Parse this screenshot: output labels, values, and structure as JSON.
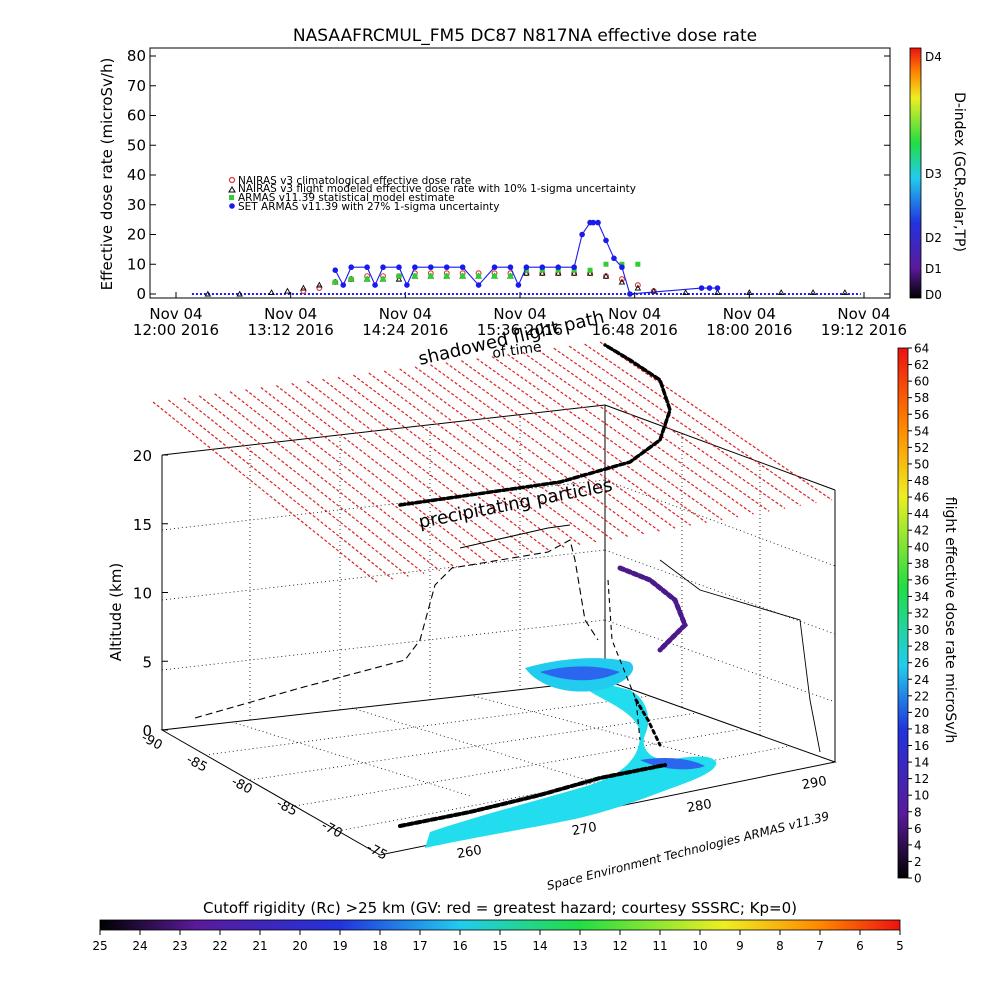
{
  "top_chart": {
    "title": "NASAAFRCMUL_FM5 DC87 N817NA effective dose rate",
    "ylabel": "Effective dose rate (microSv/h)",
    "yticks": [
      "0",
      "10",
      "20",
      "30",
      "40",
      "50",
      "60",
      "70",
      "80"
    ],
    "ylim": [
      0,
      80
    ],
    "xticks": [
      {
        "l1": "Nov 04",
        "l2": "12:00 2016"
      },
      {
        "l1": "Nov 04",
        "l2": "13:12 2016"
      },
      {
        "l1": "Nov 04",
        "l2": "14:24 2016"
      },
      {
        "l1": "Nov 04",
        "l2": "15:36 2016"
      },
      {
        "l1": "Nov 04",
        "l2": "16:48 2016"
      },
      {
        "l1": "Nov 04",
        "l2": "18:00 2016"
      },
      {
        "l1": "Nov 04",
        "l2": "19:12 2016"
      }
    ],
    "legend": [
      {
        "label": "NAIRAS v3 climatological effective dose rate",
        "color": "#e03030"
      },
      {
        "label": "NAIRAS v3 flight modeled effective dose rate with 10% 1-sigma uncertainty",
        "color": "#000000"
      },
      {
        "label": "ARMAS v11.39 statistical model estimate",
        "color": "#33cc33"
      },
      {
        "label": "SET ARMAS v11.39 with 27% 1-sigma uncertainty",
        "color": "#1a1aee"
      }
    ],
    "dindex_label": "D-index (GCR,solar,TP)",
    "dindex_ticks": [
      "D0",
      "D1",
      "D2",
      "D3",
      "D4"
    ]
  },
  "chart_data": [
    {
      "type": "scatter",
      "title": "NASAAFRCMUL_FM5 DC87 N817NA effective dose rate",
      "xlabel": "",
      "ylabel": "Effective dose rate (microSv/h)",
      "xlim_minutes": [
        0,
        432
      ],
      "ylim": [
        0,
        80
      ],
      "series": [
        {
          "name": "NAIRAS v3 climatological effective dose rate",
          "x": [
            80,
            90,
            100,
            110,
            120,
            130,
            140,
            150,
            160,
            170,
            180,
            190,
            200,
            210,
            220,
            230,
            240,
            250,
            260,
            270,
            280,
            290,
            300
          ],
          "y": [
            1,
            2,
            4,
            5,
            6,
            6,
            6,
            7,
            7,
            7,
            7,
            7,
            7,
            7,
            7,
            7,
            7,
            7,
            7,
            6,
            5,
            3,
            1
          ]
        },
        {
          "name": "NAIRAS v3 flight modeled effective dose rate with 10% 1-sigma uncertainty",
          "x": [
            20,
            40,
            60,
            70,
            80,
            90,
            100,
            110,
            120,
            130,
            140,
            150,
            160,
            170,
            180,
            190,
            200,
            210,
            220,
            230,
            240,
            250,
            260,
            270,
            280,
            290,
            300,
            320,
            340,
            360,
            380,
            400,
            420
          ],
          "y": [
            0,
            0,
            0.5,
            1,
            2,
            3,
            4,
            5,
            5,
            5,
            5,
            6,
            6,
            6,
            6,
            6,
            6,
            6,
            7,
            7,
            7,
            7,
            7,
            6,
            4,
            2,
            1,
            0.5,
            0.5,
            0.5,
            0.5,
            0.5,
            0.5
          ]
        },
        {
          "name": "ARMAS v11.39 statistical model estimate",
          "x": [
            100,
            110,
            120,
            130,
            140,
            150,
            160,
            170,
            180,
            190,
            200,
            210,
            220,
            230,
            240,
            250,
            260,
            270,
            280,
            290
          ],
          "y": [
            4,
            5,
            5,
            5,
            6,
            6,
            6,
            6,
            6,
            6,
            6,
            6,
            8,
            8,
            8,
            8,
            8,
            10,
            10,
            10
          ]
        },
        {
          "name": "SET ARMAS v11.39 with 27% 1-sigma uncertainty",
          "x": [
            100,
            105,
            110,
            120,
            125,
            130,
            140,
            145,
            150,
            160,
            170,
            180,
            190,
            200,
            210,
            215,
            220,
            230,
            240,
            250,
            255,
            260,
            262,
            265,
            270,
            275,
            280,
            285,
            330,
            335,
            340
          ],
          "y": [
            8,
            3,
            9,
            9,
            3,
            9,
            9,
            3,
            9,
            9,
            9,
            9,
            3,
            9,
            9,
            3,
            9,
            9,
            9,
            9,
            20,
            24,
            24,
            24,
            18,
            12,
            9,
            0,
            2,
            2,
            2
          ]
        }
      ]
    },
    {
      "type": "heatmap",
      "title": "Cutoff rigidity (Rc) >25 km (GV: red = greatest hazard; courtesy SSSRC; Kp=0)",
      "colorbar_ticks": [
        "25",
        "24",
        "23",
        "22",
        "21",
        "20",
        "19",
        "18",
        "17",
        "16",
        "15",
        "14",
        "13",
        "12",
        "11",
        "10",
        "9",
        "8",
        "7",
        "6",
        "5"
      ]
    },
    {
      "type": "scatter",
      "title": "",
      "xlabel": "",
      "ylabel": "Altitude (km)",
      "zticks": [
        "0",
        "5",
        "10",
        "15",
        "20"
      ],
      "lat_ticks": [
        "-90",
        "-85",
        "-80",
        "-85",
        "-70",
        "-75"
      ],
      "lon_ticks": [
        "260",
        "270",
        "280",
        "290"
      ],
      "colorbar_label": "flight effective dose rate microSv/h",
      "colorbar_ticks": [
        "0",
        "2",
        "4",
        "6",
        "8",
        "10",
        "12",
        "14",
        "16",
        "18",
        "20",
        "22",
        "24",
        "26",
        "28",
        "30",
        "32",
        "34",
        "36",
        "38",
        "40",
        "42",
        "44",
        "46",
        "48",
        "50",
        "52",
        "54",
        "56",
        "58",
        "60",
        "62",
        "64"
      ]
    }
  ],
  "annotations": {
    "shadowed": "shadowed flight path",
    "of_time": "of time",
    "precip": "precipitating particles",
    "credit": "Space Environment Technologies ARMAS v11.39"
  },
  "colors": {
    "nairas_clim": "#e03030",
    "nairas_flight": "#000000",
    "armas_model": "#33cc33",
    "set_armas": "#1a1aee",
    "cutoff_region": "#22ccee",
    "hazard_plane": "#dd2222"
  }
}
